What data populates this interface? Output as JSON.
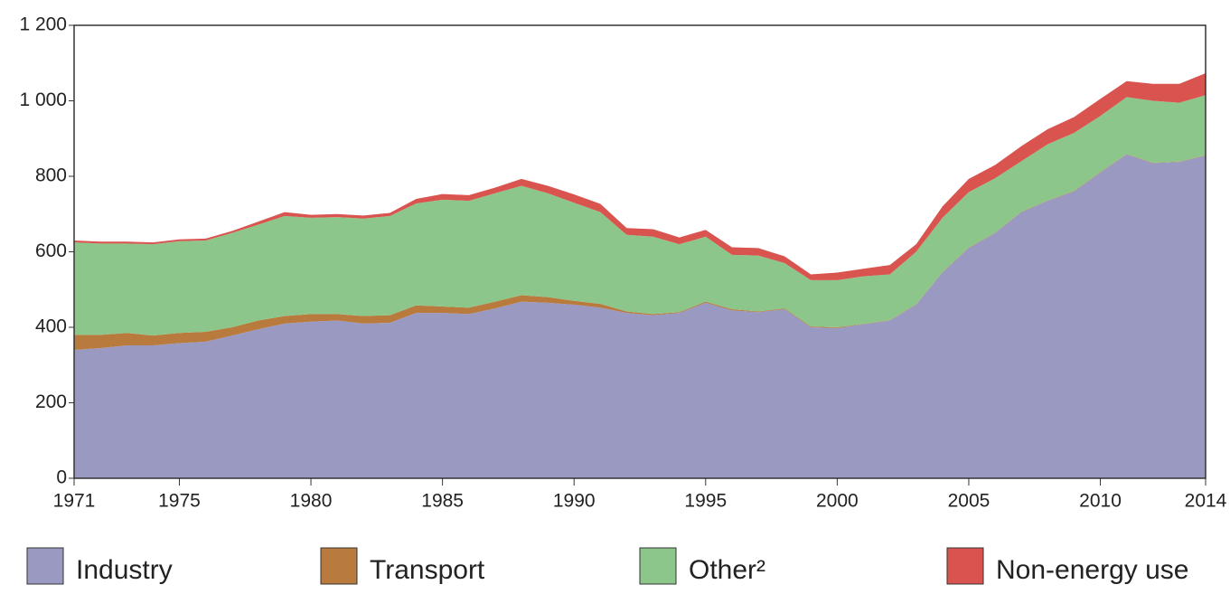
{
  "chart_data": {
    "type": "stacked_area",
    "x": [
      1971,
      1972,
      1973,
      1974,
      1975,
      1976,
      1977,
      1978,
      1979,
      1980,
      1981,
      1982,
      1983,
      1984,
      1985,
      1986,
      1987,
      1988,
      1989,
      1990,
      1991,
      1992,
      1993,
      1994,
      1995,
      1996,
      1997,
      1998,
      1999,
      2000,
      2001,
      2002,
      2003,
      2004,
      2005,
      2006,
      2007,
      2008,
      2009,
      2010,
      2011,
      2012,
      2013,
      2014
    ],
    "series": [
      {
        "name": "Industry",
        "color": "#9999c2",
        "values": [
          340,
          345,
          352,
          352,
          358,
          362,
          378,
          395,
          410,
          415,
          418,
          410,
          412,
          438,
          438,
          435,
          450,
          468,
          465,
          460,
          452,
          438,
          432,
          438,
          465,
          445,
          440,
          448,
          400,
          398,
          408,
          418,
          460,
          545,
          610,
          650,
          705,
          735,
          760,
          810,
          858,
          835,
          838,
          855
        ]
      },
      {
        "name": "Transport",
        "color": "#b87a3d",
        "values": [
          40,
          35,
          33,
          26,
          27,
          26,
          22,
          23,
          20,
          20,
          17,
          20,
          20,
          20,
          17,
          17,
          18,
          17,
          15,
          10,
          10,
          4,
          3,
          2,
          3,
          3,
          2,
          2,
          2,
          2,
          1,
          1,
          1,
          1,
          1,
          1,
          1,
          1,
          1,
          1,
          1,
          1,
          1,
          1
        ]
      },
      {
        "name": "Other²",
        "color": "#8dc68a",
        "values": [
          245,
          242,
          237,
          242,
          243,
          242,
          250,
          254,
          265,
          255,
          257,
          258,
          263,
          270,
          283,
          283,
          287,
          290,
          275,
          260,
          243,
          203,
          205,
          180,
          172,
          144,
          148,
          120,
          123,
          125,
          126,
          121,
          139,
          144,
          147,
          144,
          134,
          149,
          154,
          149,
          151,
          164,
          156,
          159
        ]
      },
      {
        "name": "Non-energy use",
        "color": "#d9534f",
        "values": [
          5,
          5,
          5,
          5,
          5,
          5,
          5,
          8,
          10,
          8,
          8,
          8,
          8,
          12,
          15,
          15,
          15,
          18,
          20,
          22,
          22,
          18,
          20,
          18,
          18,
          20,
          20,
          18,
          15,
          20,
          20,
          25,
          20,
          30,
          35,
          35,
          40,
          40,
          42,
          45,
          42,
          45,
          50,
          58
        ]
      }
    ],
    "xlim": [
      1971,
      2014
    ],
    "xticks": [
      1971,
      1975,
      1980,
      1985,
      1990,
      1995,
      2000,
      2005,
      2010,
      2014
    ],
    "ylim": [
      0,
      1200
    ],
    "yticks": [
      0,
      200,
      400,
      600,
      800,
      {
        "value": 1000,
        "label": "1 000"
      },
      {
        "value": 1200,
        "label": "1 200"
      }
    ],
    "legend": "bottom"
  }
}
